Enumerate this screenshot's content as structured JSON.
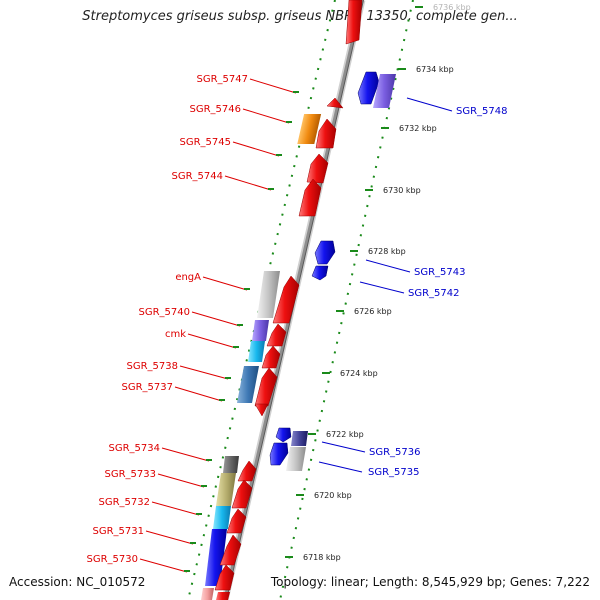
{
  "title": "Streptomyces griseus subsp. griseus NBRC 13350, complete gen...",
  "footer": {
    "accession": "Accession: NC_010572",
    "summary": "Topology: linear; Length: 8,545,929 bp; Genes: 7,222"
  },
  "colors": {
    "forward_gene": "#ee1111",
    "reverse_gene": "#1a1aee",
    "forward_label": "#dd0000",
    "reverse_label": "#0000cc",
    "tick": "#1a8a1a",
    "backbone": "#9a9a9a"
  },
  "kbp_ticks": [
    "6736 kbp",
    "6734 kbp",
    "6732 kbp",
    "6730 kbp",
    "6728 kbp",
    "6726 kbp",
    "6724 kbp",
    "6722 kbp",
    "6720 kbp",
    "6718 kbp"
  ],
  "forward_labels": [
    "SGR_5747",
    "SGR_5746",
    "SGR_5745",
    "SGR_5744",
    "engA",
    "SGR_5740",
    "cmk",
    "SGR_5738",
    "SGR_5737",
    "SGR_5734",
    "SGR_5733",
    "SGR_5732",
    "SGR_5731",
    "SGR_5730"
  ],
  "reverse_labels": [
    "SGR_5748",
    "SGR_5743",
    "SGR_5742",
    "SGR_5736",
    "SGR_5735"
  ]
}
